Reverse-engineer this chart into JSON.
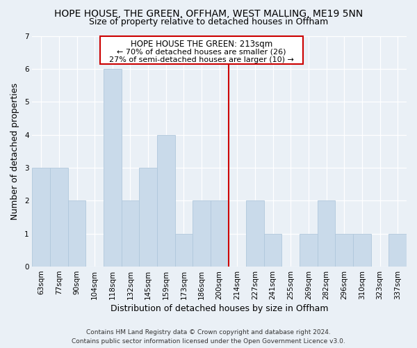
{
  "title": "HOPE HOUSE, THE GREEN, OFFHAM, WEST MALLING, ME19 5NN",
  "subtitle": "Size of property relative to detached houses in Offham",
  "xlabel": "Distribution of detached houses by size in Offham",
  "ylabel": "Number of detached properties",
  "categories": [
    "63sqm",
    "77sqm",
    "90sqm",
    "104sqm",
    "118sqm",
    "132sqm",
    "145sqm",
    "159sqm",
    "173sqm",
    "186sqm",
    "200sqm",
    "214sqm",
    "227sqm",
    "241sqm",
    "255sqm",
    "269sqm",
    "282sqm",
    "296sqm",
    "310sqm",
    "323sqm",
    "337sqm"
  ],
  "values": [
    3,
    3,
    2,
    0,
    6,
    2,
    3,
    4,
    1,
    2,
    2,
    0,
    2,
    1,
    0,
    1,
    2,
    1,
    1,
    0,
    1
  ],
  "bar_color": "#c9daea",
  "bar_edge_color": "#b0c8dc",
  "reference_line_color": "#cc0000",
  "ylim": [
    0,
    7
  ],
  "yticks": [
    0,
    1,
    2,
    3,
    4,
    5,
    6,
    7
  ],
  "annotation_title": "HOPE HOUSE THE GREEN: 213sqm",
  "annotation_line1": "← 70% of detached houses are smaller (26)",
  "annotation_line2": "27% of semi-detached houses are larger (10) →",
  "annotation_box_color": "#ffffff",
  "annotation_box_edge": "#cc0000",
  "footer1": "Contains HM Land Registry data © Crown copyright and database right 2024.",
  "footer2": "Contains public sector information licensed under the Open Government Licence v3.0.",
  "background_color": "#eaf0f6",
  "grid_color": "#ffffff",
  "title_fontsize": 10,
  "subtitle_fontsize": 9,
  "xlabel_fontsize": 9,
  "ylabel_fontsize": 9,
  "tick_fontsize": 7.5,
  "annotation_title_fontsize": 8.5,
  "annotation_text_fontsize": 8,
  "footer_fontsize": 6.5
}
